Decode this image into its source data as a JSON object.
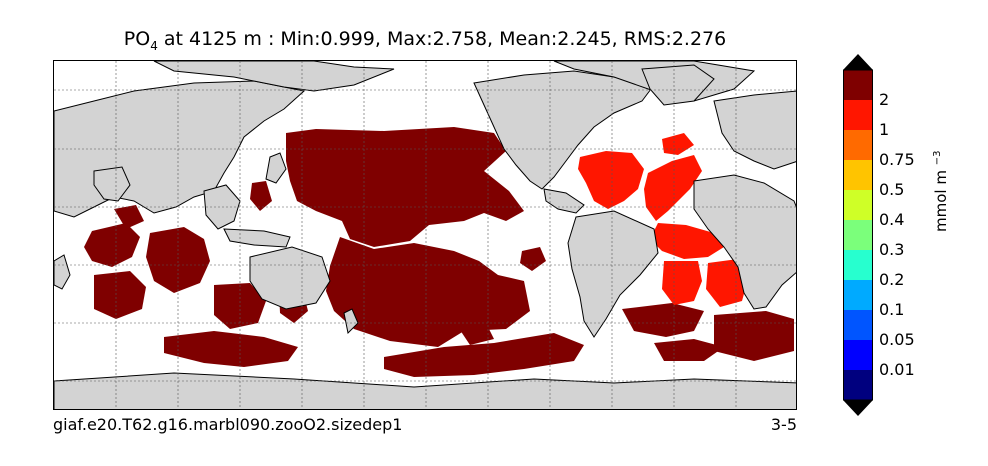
{
  "title": {
    "variable_main": "PO",
    "variable_sub": "4",
    "rest": " at 4125 m : Min:0.999, Max:2.758, Mean:2.245, RMS:2.276"
  },
  "footer": {
    "case_name": "giaf.e20.T62.g16.marbl090.zooO2.sizedep1",
    "panel_id": "3-5"
  },
  "colorbar": {
    "units_main": "mmol m",
    "units_sup": "−3",
    "levels": [
      "2",
      "1",
      "0.75",
      "0.5",
      "0.4",
      "0.3",
      "0.2",
      "0.1",
      "0.05",
      "0.01"
    ],
    "colors": [
      "#00007f",
      "#0000ff",
      "#0055ff",
      "#00aaff",
      "#27ffcf",
      "#7bff7b",
      "#cfff27",
      "#ffc400",
      "#ff6a00",
      "#ff1600",
      "#7f0000"
    ]
  },
  "map": {
    "land_color": "#d3d3d3",
    "high_color": "#7f0000",
    "mid_color": "#ff1600",
    "ocean_color": "#ffffff"
  }
}
